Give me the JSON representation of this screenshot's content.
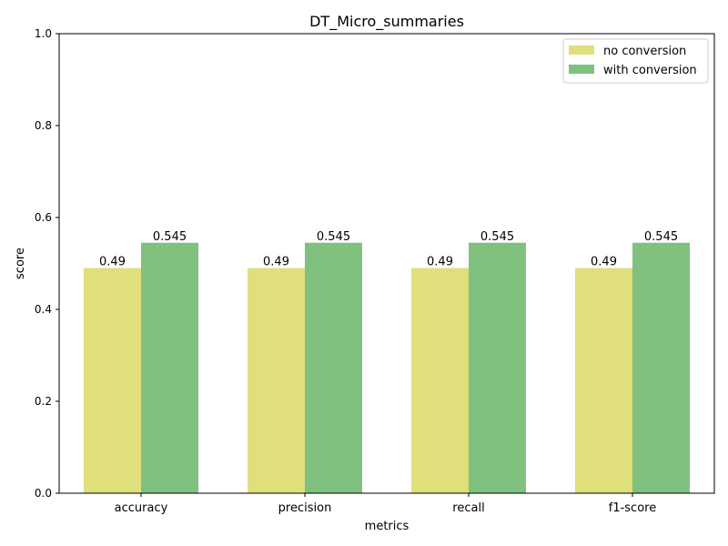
{
  "chart_data": {
    "type": "bar",
    "title": "DT_Micro_summaries",
    "xlabel": "metrics",
    "ylabel": "score",
    "ylim": [
      0,
      1.0
    ],
    "yticks": [
      "0.0",
      "0.2",
      "0.4",
      "0.6",
      "0.8",
      "1.0"
    ],
    "categories": [
      "accuracy",
      "precision",
      "recall",
      "f1-score"
    ],
    "series": [
      {
        "name": "no conversion",
        "values": [
          0.49,
          0.49,
          0.49,
          0.49
        ],
        "labels": [
          "0.49",
          "0.49",
          "0.49",
          "0.49"
        ],
        "color": "#dfdf7c"
      },
      {
        "name": "with conversion",
        "values": [
          0.545,
          0.545,
          0.545,
          0.545
        ],
        "labels": [
          "0.545",
          "0.545",
          "0.545",
          "0.545"
        ],
        "color": "#80c180"
      }
    ],
    "legend": "top-right",
    "grid": false
  }
}
